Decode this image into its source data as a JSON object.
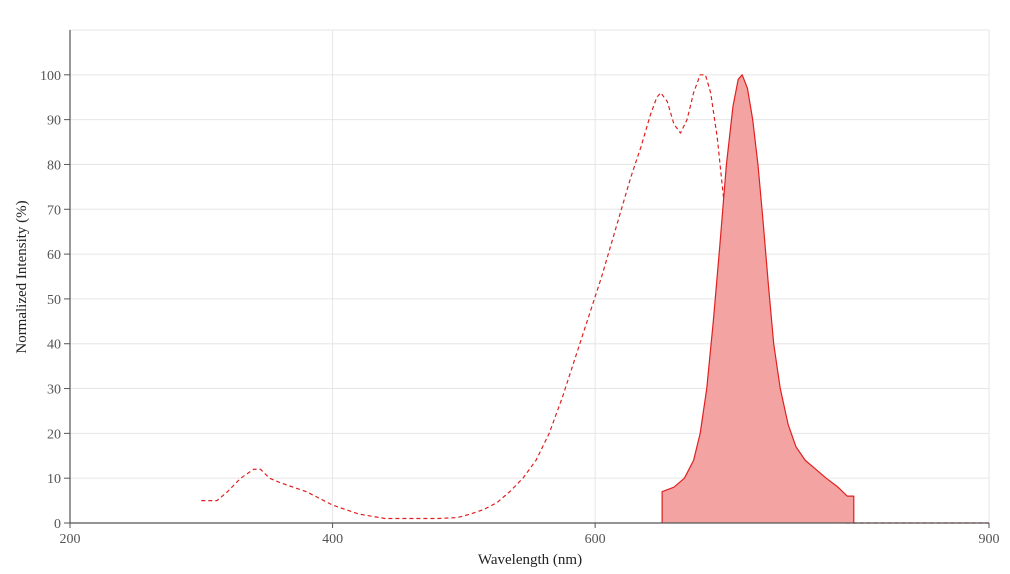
{
  "chart_data": {
    "type": "line",
    "title": "",
    "xlabel": "Wavelength (nm)",
    "ylabel": "Normalized Intensity (%)",
    "xlim": [
      200,
      900
    ],
    "ylim": [
      0,
      110
    ],
    "x_ticks": [
      200,
      400,
      600,
      900
    ],
    "y_ticks": [
      0,
      10,
      20,
      30,
      40,
      50,
      60,
      70,
      80,
      90,
      100
    ],
    "grid": true,
    "colors": {
      "line": "#e02020",
      "fill": "#f4a3a3",
      "grid": "#e6e6e6",
      "axis": "#555555"
    },
    "series": [
      {
        "style": "dashed",
        "filled": false,
        "points": [
          [
            300,
            5
          ],
          [
            312,
            5
          ],
          [
            320,
            7
          ],
          [
            330,
            10
          ],
          [
            340,
            12
          ],
          [
            345,
            12
          ],
          [
            352,
            10
          ],
          [
            360,
            9
          ],
          [
            370,
            8
          ],
          [
            380,
            7
          ],
          [
            390,
            5.5
          ],
          [
            400,
            4
          ],
          [
            410,
            3
          ],
          [
            420,
            2
          ],
          [
            430,
            1.5
          ],
          [
            440,
            1
          ],
          [
            460,
            1
          ],
          [
            480,
            1
          ],
          [
            495,
            1.2
          ],
          [
            505,
            2
          ],
          [
            515,
            3
          ],
          [
            525,
            4.5
          ],
          [
            535,
            7
          ],
          [
            545,
            10
          ],
          [
            555,
            14
          ],
          [
            565,
            20
          ],
          [
            575,
            28
          ],
          [
            585,
            37
          ],
          [
            595,
            46
          ],
          [
            605,
            55
          ],
          [
            612,
            62
          ],
          [
            620,
            70
          ],
          [
            627,
            77
          ],
          [
            635,
            84
          ],
          [
            642,
            91
          ],
          [
            647,
            95
          ],
          [
            650,
            96
          ],
          [
            655,
            94
          ],
          [
            660,
            89
          ],
          [
            665,
            87
          ],
          [
            670,
            90
          ],
          [
            675,
            96
          ],
          [
            680,
            100
          ],
          [
            684,
            100
          ],
          [
            688,
            96
          ],
          [
            693,
            86
          ],
          [
            698,
            72
          ],
          [
            704,
            56
          ],
          [
            710,
            40
          ],
          [
            715,
            28
          ],
          [
            720,
            18
          ],
          [
            725,
            12
          ],
          [
            730,
            7
          ],
          [
            737,
            4
          ],
          [
            745,
            2.5
          ],
          [
            755,
            1.5
          ],
          [
            765,
            0.7
          ],
          [
            775,
            0.3
          ],
          [
            790,
            0
          ],
          [
            900,
            0
          ]
        ]
      },
      {
        "style": "solid",
        "filled": true,
        "points": [
          [
            651,
            0
          ],
          [
            651,
            7
          ],
          [
            660,
            8
          ],
          [
            668,
            10
          ],
          [
            675,
            14
          ],
          [
            680,
            20
          ],
          [
            685,
            30
          ],
          [
            690,
            45
          ],
          [
            695,
            62
          ],
          [
            700,
            80
          ],
          [
            705,
            93
          ],
          [
            709,
            99
          ],
          [
            712,
            100
          ],
          [
            716,
            97
          ],
          [
            720,
            90
          ],
          [
            724,
            80
          ],
          [
            728,
            67
          ],
          [
            732,
            53
          ],
          [
            736,
            40
          ],
          [
            741,
            30
          ],
          [
            747,
            22
          ],
          [
            753,
            17
          ],
          [
            760,
            14
          ],
          [
            768,
            12
          ],
          [
            776,
            10
          ],
          [
            785,
            8
          ],
          [
            792,
            6
          ],
          [
            797,
            6
          ],
          [
            797,
            0
          ]
        ]
      }
    ]
  }
}
